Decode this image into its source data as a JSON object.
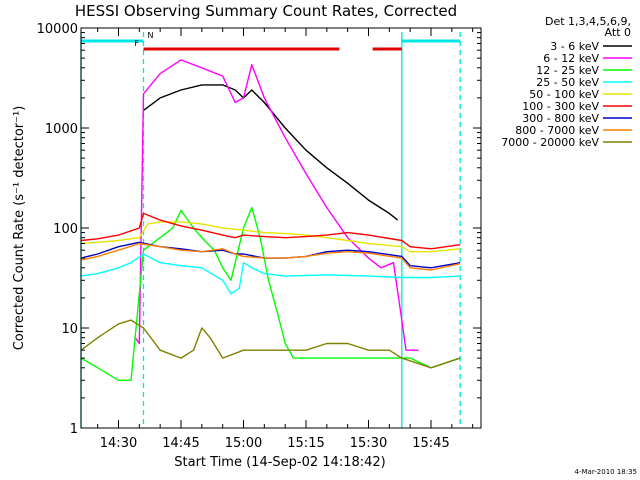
{
  "chart_data": {
    "type": "line",
    "title": "HESSI Observing Summary Count Rates, Corrected",
    "xlabel": "Start Time (14-Sep-02 14:18:42)",
    "ylabel": "Corrected Count Rate (s⁻¹ detector⁻¹)",
    "y_scale": "log",
    "ylim": [
      1,
      10000
    ],
    "xlim": [
      "14:21",
      "15:57"
    ],
    "x_ticks": [
      "14:30",
      "14:45",
      "15:00",
      "15:15",
      "15:30",
      "15:45"
    ],
    "y_ticks": [
      "1",
      "10",
      "100",
      "1000",
      "10000"
    ],
    "legend_position": "right",
    "legend_header": [
      "Det 1,3,4,5,6,9,",
      "Att 0"
    ],
    "timestamp": "4-Mar-2010 18:35",
    "flags": [
      {
        "label": "N",
        "color": "#00e5e5",
        "intervals": [
          [
            "14:21",
            "14:36"
          ],
          [
            "15:38",
            "15:52"
          ]
        ]
      },
      {
        "label": "F",
        "color": "#e00000",
        "intervals": [
          [
            "14:36",
            "15:23"
          ],
          [
            "15:31",
            "15:38"
          ]
        ]
      }
    ],
    "markers": [
      {
        "time": "14:21",
        "style": "solid",
        "color": "#00e5e5"
      },
      {
        "time": "14:36",
        "style": "dashed",
        "color": "#00e5e5"
      },
      {
        "time": "15:38",
        "style": "solid",
        "color": "#00e5e5"
      },
      {
        "time": "15:52",
        "style": "dashed",
        "color": "#00e5e5"
      }
    ],
    "series": [
      {
        "name": "3 - 6 keV",
        "color": "#000000",
        "points": [
          [
            "14:36",
            1500
          ],
          [
            "14:40",
            2000
          ],
          [
            "14:45",
            2400
          ],
          [
            "14:50",
            2700
          ],
          [
            "14:55",
            2700
          ],
          [
            "14:58",
            2400
          ],
          [
            "15:00",
            2000
          ],
          [
            "15:02",
            2400
          ],
          [
            "15:05",
            1800
          ],
          [
            "15:10",
            1000
          ],
          [
            "15:15",
            600
          ],
          [
            "15:20",
            400
          ],
          [
            "15:25",
            280
          ],
          [
            "15:30",
            190
          ],
          [
            "15:35",
            140
          ],
          [
            "15:37",
            120
          ]
        ]
      },
      {
        "name": "6 - 12 keV",
        "color": "#ff00ff",
        "points": [
          [
            "14:34",
            8
          ],
          [
            "14:35",
            7
          ],
          [
            "14:36",
            2200
          ],
          [
            "14:40",
            3500
          ],
          [
            "14:45",
            4800
          ],
          [
            "14:50",
            4000
          ],
          [
            "14:55",
            3300
          ],
          [
            "14:58",
            1800
          ],
          [
            "15:00",
            2000
          ],
          [
            "15:02",
            4300
          ],
          [
            "15:05",
            2000
          ],
          [
            "15:10",
            800
          ],
          [
            "15:15",
            350
          ],
          [
            "15:20",
            160
          ],
          [
            "15:25",
            80
          ],
          [
            "15:30",
            50
          ],
          [
            "15:33",
            40
          ],
          [
            "15:36",
            45
          ],
          [
            "15:38",
            12
          ],
          [
            "15:39",
            6
          ],
          [
            "15:42",
            6
          ]
        ]
      },
      {
        "name": "12 - 25 keV",
        "color": "#00ff00",
        "points": [
          [
            "14:21",
            5
          ],
          [
            "14:25",
            4
          ],
          [
            "14:30",
            3
          ],
          [
            "14:33",
            3
          ],
          [
            "14:36",
            60
          ],
          [
            "14:40",
            80
          ],
          [
            "14:43",
            100
          ],
          [
            "14:45",
            150
          ],
          [
            "14:48",
            100
          ],
          [
            "14:50",
            80
          ],
          [
            "14:53",
            60
          ],
          [
            "14:55",
            40
          ],
          [
            "14:57",
            30
          ],
          [
            "15:00",
            100
          ],
          [
            "15:02",
            160
          ],
          [
            "15:04",
            80
          ],
          [
            "15:06",
            30
          ],
          [
            "15:08",
            15
          ],
          [
            "15:10",
            7
          ],
          [
            "15:12",
            5
          ],
          [
            "15:15",
            5
          ],
          [
            "15:20",
            5
          ],
          [
            "15:25",
            5
          ],
          [
            "15:30",
            5
          ],
          [
            "15:35",
            5
          ],
          [
            "15:40",
            5
          ],
          [
            "15:45",
            4
          ],
          [
            "15:52",
            5
          ]
        ]
      },
      {
        "name": "25 - 50 keV",
        "color": "#00ffff",
        "points": [
          [
            "14:21",
            33
          ],
          [
            "14:25",
            35
          ],
          [
            "14:30",
            40
          ],
          [
            "14:33",
            45
          ],
          [
            "14:36",
            55
          ],
          [
            "14:40",
            45
          ],
          [
            "14:45",
            42
          ],
          [
            "14:50",
            40
          ],
          [
            "14:55",
            30
          ],
          [
            "14:57",
            22
          ],
          [
            "14:59",
            25
          ],
          [
            "15:00",
            45
          ],
          [
            "15:02",
            40
          ],
          [
            "15:05",
            35
          ],
          [
            "15:10",
            33
          ],
          [
            "15:20",
            34
          ],
          [
            "15:30",
            33
          ],
          [
            "15:38",
            32
          ],
          [
            "15:45",
            32
          ],
          [
            "15:52",
            33
          ]
        ]
      },
      {
        "name": "50 - 100 keV",
        "color": "#e5e500",
        "points": [
          [
            "14:21",
            70
          ],
          [
            "14:25",
            72
          ],
          [
            "14:30",
            75
          ],
          [
            "14:35",
            80
          ],
          [
            "14:37",
            110
          ],
          [
            "14:40",
            115
          ],
          [
            "14:45",
            115
          ],
          [
            "14:50",
            110
          ],
          [
            "14:55",
            100
          ],
          [
            "15:00",
            95
          ],
          [
            "15:05",
            90
          ],
          [
            "15:10",
            88
          ],
          [
            "15:15",
            85
          ],
          [
            "15:20",
            80
          ],
          [
            "15:25",
            75
          ],
          [
            "15:30",
            70
          ],
          [
            "15:38",
            65
          ],
          [
            "15:40",
            58
          ],
          [
            "15:45",
            58
          ],
          [
            "15:52",
            62
          ]
        ]
      },
      {
        "name": "100 - 300 keV",
        "color": "#ff0000",
        "points": [
          [
            "14:21",
            75
          ],
          [
            "14:25",
            78
          ],
          [
            "14:30",
            85
          ],
          [
            "14:35",
            100
          ],
          [
            "14:36",
            140
          ],
          [
            "14:40",
            120
          ],
          [
            "14:45",
            105
          ],
          [
            "14:50",
            95
          ],
          [
            "14:55",
            85
          ],
          [
            "14:58",
            80
          ],
          [
            "15:00",
            85
          ],
          [
            "15:05",
            82
          ],
          [
            "15:10",
            80
          ],
          [
            "15:15",
            82
          ],
          [
            "15:20",
            85
          ],
          [
            "15:25",
            90
          ],
          [
            "15:30",
            85
          ],
          [
            "15:38",
            75
          ],
          [
            "15:40",
            65
          ],
          [
            "15:45",
            62
          ],
          [
            "15:52",
            68
          ]
        ]
      },
      {
        "name": "300 - 800 keV",
        "color": "#0000cc",
        "points": [
          [
            "14:21",
            50
          ],
          [
            "14:25",
            55
          ],
          [
            "14:30",
            65
          ],
          [
            "14:35",
            72
          ],
          [
            "14:40",
            65
          ],
          [
            "14:45",
            62
          ],
          [
            "14:50",
            58
          ],
          [
            "14:55",
            60
          ],
          [
            "14:58",
            55
          ],
          [
            "15:00",
            55
          ],
          [
            "15:05",
            50
          ],
          [
            "15:10",
            50
          ],
          [
            "15:15",
            52
          ],
          [
            "15:20",
            58
          ],
          [
            "15:25",
            60
          ],
          [
            "15:30",
            58
          ],
          [
            "15:38",
            52
          ],
          [
            "15:40",
            42
          ],
          [
            "15:45",
            40
          ],
          [
            "15:52",
            45
          ]
        ]
      },
      {
        "name": "800 - 7000 keV",
        "color": "#ff7f00",
        "points": [
          [
            "14:21",
            48
          ],
          [
            "14:25",
            52
          ],
          [
            "14:30",
            60
          ],
          [
            "14:35",
            70
          ],
          [
            "14:40",
            65
          ],
          [
            "14:45",
            60
          ],
          [
            "14:50",
            58
          ],
          [
            "14:55",
            62
          ],
          [
            "14:58",
            55
          ],
          [
            "15:00",
            52
          ],
          [
            "15:05",
            50
          ],
          [
            "15:10",
            50
          ],
          [
            "15:15",
            52
          ],
          [
            "15:20",
            56
          ],
          [
            "15:25",
            58
          ],
          [
            "15:30",
            56
          ],
          [
            "15:38",
            50
          ],
          [
            "15:40",
            40
          ],
          [
            "15:45",
            38
          ],
          [
            "15:52",
            44
          ]
        ]
      },
      {
        "name": "7000 - 20000 keV",
        "color": "#808000",
        "points": [
          [
            "14:21",
            6
          ],
          [
            "14:25",
            8
          ],
          [
            "14:30",
            11
          ],
          [
            "14:33",
            12
          ],
          [
            "14:36",
            10
          ],
          [
            "14:40",
            6
          ],
          [
            "14:45",
            5
          ],
          [
            "14:48",
            6
          ],
          [
            "14:50",
            10
          ],
          [
            "14:52",
            8
          ],
          [
            "14:55",
            5
          ],
          [
            "15:00",
            6
          ],
          [
            "15:05",
            6
          ],
          [
            "15:10",
            6
          ],
          [
            "15:15",
            6
          ],
          [
            "15:20",
            7
          ],
          [
            "15:25",
            7
          ],
          [
            "15:30",
            6
          ],
          [
            "15:35",
            6
          ],
          [
            "15:38",
            5
          ],
          [
            "15:45",
            4
          ],
          [
            "15:52",
            5
          ]
        ]
      }
    ]
  }
}
